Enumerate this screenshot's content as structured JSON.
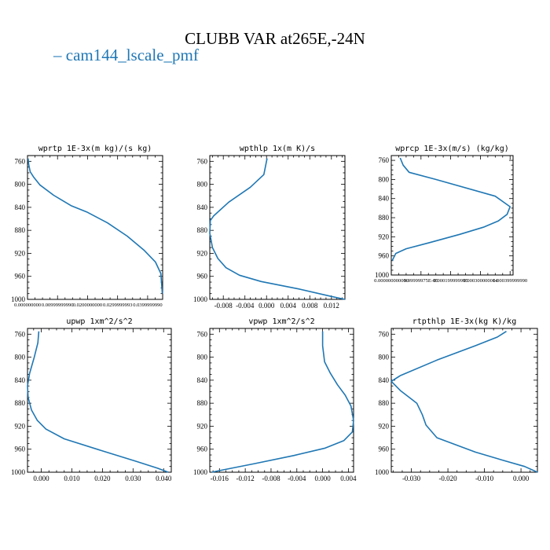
{
  "title": "CLUBB VAR at265E,-24N",
  "legend": {
    "label": "cam144_lscale_pmf",
    "color": "#1f77b4"
  },
  "chart_data": [
    {
      "type": "line",
      "title": "wprtp  1E-3x(m kg)/(s kg)",
      "xlim": [
        0.0,
        0.045
      ],
      "ylim": [
        1000,
        750
      ],
      "xticks": [
        "0.000000000",
        "0.00999999990",
        "0.0200000000",
        "0.0299999993",
        "0.0399999990"
      ],
      "xtick_values": [
        0.0,
        0.01,
        0.02,
        0.03,
        0.04
      ],
      "yticks": [
        760,
        800,
        840,
        880,
        920,
        960,
        1000
      ],
      "series": [
        {
          "color": "#1f77b4",
          "x": [
            0.0002,
            0.0004,
            0.0009,
            0.002,
            0.0041,
            0.0087,
            0.0145,
            0.0197,
            0.0266,
            0.0332,
            0.0389,
            0.0426,
            0.0444,
            0.0449
          ],
          "y": [
            755,
            765,
            778,
            787,
            801,
            819,
            837,
            848,
            867,
            890,
            915,
            935,
            955,
            990
          ]
        }
      ]
    },
    {
      "type": "line",
      "title": "wpthlp  1x(m K)/s",
      "xlim": [
        -0.0105,
        0.0145
      ],
      "ylim": [
        1000,
        750
      ],
      "xticks": [
        "-0.008",
        "-0.004",
        "0.000",
        "0.004",
        "0.008",
        "0.012"
      ],
      "xtick_values": [
        -0.008,
        -0.004,
        0.0,
        0.004,
        0.008,
        0.012
      ],
      "yticks": [
        760,
        800,
        840,
        880,
        920,
        960,
        1000
      ],
      "series": [
        {
          "color": "#1f77b4",
          "x": [
            0.0001,
            -0.0005,
            -0.003,
            -0.007,
            -0.0098,
            -0.0104,
            -0.0105,
            -0.01,
            -0.009,
            -0.0075,
            -0.005,
            -0.001,
            0.006,
            0.012,
            0.0145
          ],
          "y": [
            755,
            783,
            805,
            831,
            855,
            863,
            885,
            910,
            929,
            945,
            958,
            969,
            982,
            995,
            1000
          ]
        }
      ]
    },
    {
      "type": "line",
      "title": "wprcp  1E-3x(m/s) (kg/kg)",
      "xlim": [
        0.0,
        0.00041
      ],
      "ylim": [
        1000,
        750
      ],
      "xticks": [
        "0.000000000000",
        "9.99999975E-05",
        "0.000199999995",
        "0.000300000014",
        "0.000399999990"
      ],
      "xtick_values": [
        0.0,
        0.0001,
        0.0002,
        0.0003,
        0.0004
      ],
      "yticks": [
        760,
        800,
        840,
        880,
        920,
        960,
        1000
      ],
      "series": [
        {
          "color": "#1f77b4",
          "x": [
            3e-05,
            4e-05,
            6e-05,
            0.00015,
            0.00035,
            0.0004,
            0.00039,
            0.00036,
            0.00031,
            0.00023,
            0.00013,
            5e-05,
            1.5e-05,
            3e-06
          ],
          "y": [
            755,
            770,
            785,
            800,
            835,
            857,
            873,
            887,
            900,
            915,
            932,
            945,
            955,
            970
          ]
        }
      ]
    },
    {
      "type": "line",
      "title": "upwp  1xm^2/s^2",
      "xlim": [
        -0.0045,
        0.0425
      ],
      "ylim": [
        1000,
        750
      ],
      "xticks": [
        "0.000",
        "0.010",
        "0.020",
        "0.030",
        "0.040"
      ],
      "xtick_values": [
        0.0,
        0.01,
        0.02,
        0.03,
        0.04
      ],
      "yticks": [
        760,
        800,
        840,
        880,
        920,
        960,
        1000
      ],
      "series": [
        {
          "color": "#1f77b4",
          "x": [
            -0.0008,
            -0.0011,
            -0.0023,
            -0.0038,
            -0.0045,
            -0.0043,
            -0.0032,
            -0.0013,
            0.0015,
            0.0075,
            0.02,
            0.031,
            0.038,
            0.0415
          ],
          "y": [
            755,
            775,
            800,
            828,
            850,
            870,
            892,
            910,
            925,
            942,
            963,
            981,
            993,
            1000
          ]
        }
      ]
    },
    {
      "type": "line",
      "title": "vpwp  1xm^2/s^2",
      "xlim": [
        -0.0175,
        0.0048
      ],
      "ylim": [
        1000,
        750
      ],
      "xticks": [
        "-0.016",
        "-0.012",
        "-0.008",
        "-0.004",
        "0.000",
        "0.004"
      ],
      "xtick_values": [
        -0.016,
        -0.012,
        -0.008,
        -0.004,
        0.0,
        0.004
      ],
      "yticks": [
        760,
        800,
        840,
        880,
        920,
        960,
        1000
      ],
      "series": [
        {
          "color": "#1f77b4",
          "x": [
            0.0,
            0.0,
            0.0003,
            0.0012,
            0.0023,
            0.0035,
            0.0044,
            0.0048,
            0.0046,
            0.0033,
            0.0004,
            -0.0045,
            -0.0105,
            -0.0155,
            -0.0172
          ],
          "y": [
            755,
            780,
            808,
            828,
            848,
            866,
            885,
            910,
            930,
            945,
            958,
            971,
            985,
            996,
            1000
          ]
        }
      ]
    },
    {
      "type": "line",
      "title": "rtpthlp  1E-3x(kg K)/kg",
      "xlim": [
        -0.0355,
        0.0045
      ],
      "ylim": [
        1000,
        750
      ],
      "xticks": [
        "-0.030",
        "-0.020",
        "-0.010",
        "0.000"
      ],
      "xtick_values": [
        -0.03,
        -0.02,
        -0.01,
        0.0
      ],
      "yticks": [
        760,
        800,
        840,
        880,
        920,
        960,
        1000
      ],
      "series": [
        {
          "color": "#1f77b4",
          "x": [
            -0.004,
            -0.0065,
            -0.0125,
            -0.023,
            -0.033,
            -0.0355,
            -0.033,
            -0.0285,
            -0.027,
            -0.026,
            -0.023,
            -0.0125,
            -0.0045,
            0.001,
            0.0045
          ],
          "y": [
            755,
            765,
            780,
            805,
            832,
            842,
            858,
            880,
            900,
            918,
            940,
            965,
            980,
            990,
            1000
          ]
        }
      ]
    }
  ]
}
